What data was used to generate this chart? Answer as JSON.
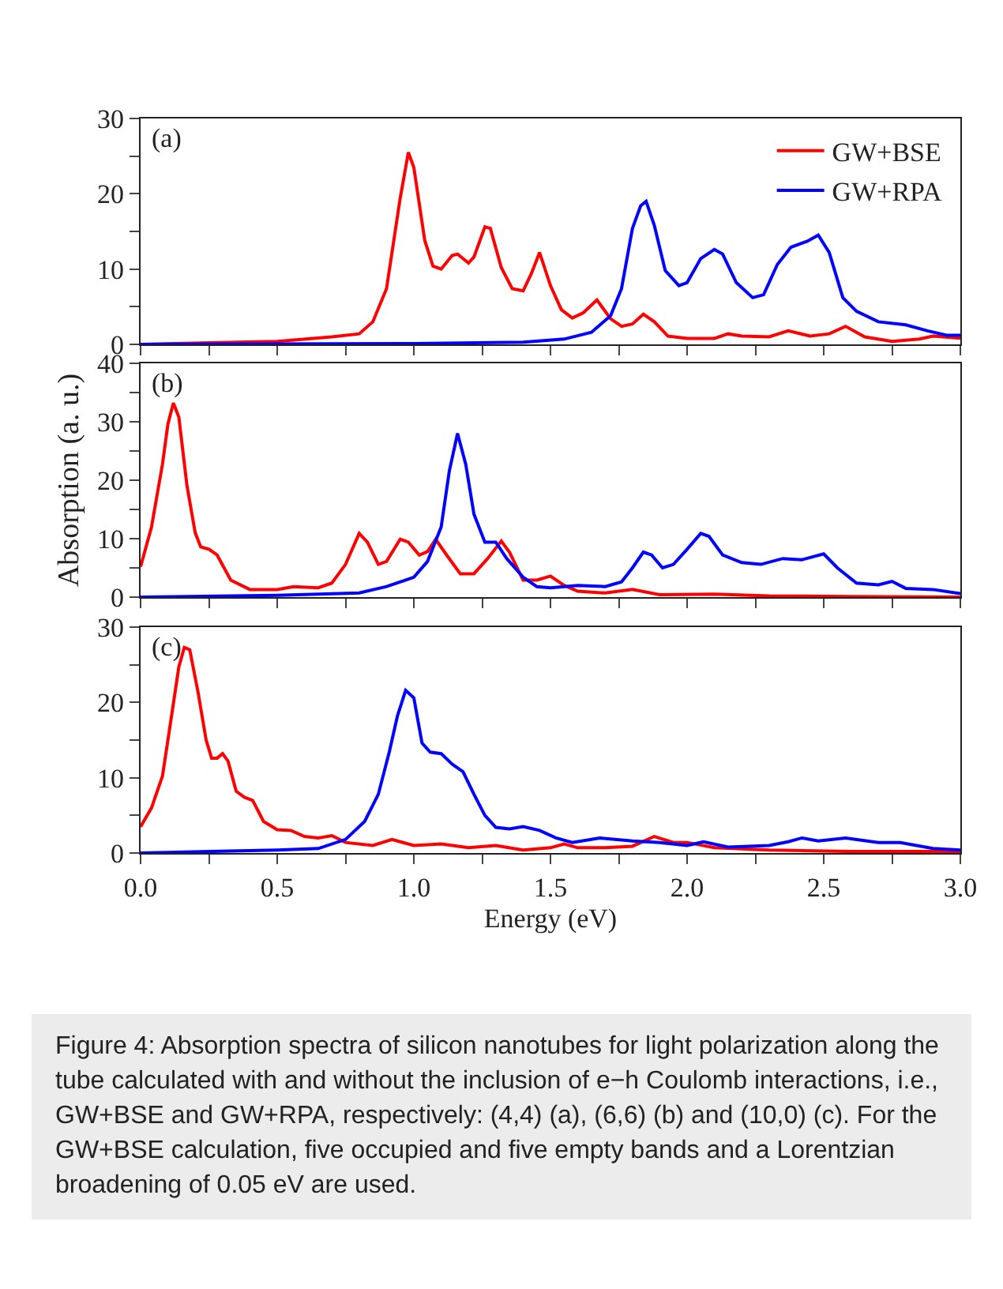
{
  "chart_data": [
    {
      "type": "line",
      "legend": "top right",
      "tick_labels": "y",
      "grid": false,
      "marker": "none",
      "line_style": "solid",
      "annotations": [
        "(a)"
      ],
      "xlim": [
        0,
        3
      ],
      "xticks": [
        {
          "value": 0,
          "label": null
        },
        {
          "value": 0.25,
          "label": null
        },
        {
          "value": 0.5,
          "label": null
        },
        {
          "value": 0.75,
          "label": null
        },
        {
          "value": 1,
          "label": null
        },
        {
          "value": 1.25,
          "label": null
        },
        {
          "value": 1.5,
          "label": null
        },
        {
          "value": 1.75,
          "label": null
        },
        {
          "value": 2,
          "label": null
        },
        {
          "value": 2.25,
          "label": null
        },
        {
          "value": 2.5,
          "label": null
        },
        {
          "value": 2.75,
          "label": null
        },
        {
          "value": 3,
          "label": null
        }
      ],
      "ylim": [
        0,
        30
      ],
      "yticks": [
        0,
        {
          "value": 5,
          "label": null
        },
        10,
        {
          "value": 15,
          "label": null
        },
        20,
        {
          "value": 25,
          "label": null
        },
        30
      ],
      "series": [
        {
          "name": "GW+BSE",
          "color": "#ff0000",
          "x": [
            0,
            0.5,
            0.7,
            0.8,
            0.85,
            0.9,
            0.95,
            0.98,
            1.0,
            1.04,
            1.07,
            1.1,
            1.14,
            1.16,
            1.2,
            1.22,
            1.26,
            1.28,
            1.32,
            1.36,
            1.4,
            1.43,
            1.46,
            1.5,
            1.54,
            1.58,
            1.62,
            1.67,
            1.72,
            1.76,
            1.8,
            1.84,
            1.88,
            1.93,
            2.0,
            2.1,
            2.15,
            2.2,
            2.3,
            2.37,
            2.45,
            2.52,
            2.58,
            2.65,
            2.75,
            2.85,
            2.9,
            3.0
          ],
          "values": [
            0,
            0.4,
            1.0,
            1.4,
            3,
            7.4,
            19.4,
            25.5,
            23.5,
            13.8,
            10.4,
            10,
            11.8,
            12,
            10.8,
            11.6,
            15.6,
            15.4,
            10.2,
            7.4,
            7.1,
            9.4,
            12.2,
            7.8,
            4.6,
            3.5,
            4.2,
            5.9,
            3.4,
            2.4,
            2.7,
            4,
            3,
            1.1,
            0.8,
            0.8,
            1.4,
            1.1,
            1,
            1.8,
            1.1,
            1.4,
            2.4,
            1,
            0.4,
            0.7,
            1.1,
            0.8
          ]
        },
        {
          "name": "GW+RPA",
          "color": "#0000ff",
          "x": [
            0,
            1.0,
            1.4,
            1.55,
            1.65,
            1.72,
            1.76,
            1.8,
            1.83,
            1.85,
            1.88,
            1.92,
            1.97,
            2.0,
            2.05,
            2.1,
            2.13,
            2.18,
            2.24,
            2.28,
            2.33,
            2.38,
            2.44,
            2.48,
            2.52,
            2.57,
            2.62,
            2.7,
            2.8,
            2.88,
            2.95,
            3.0
          ],
          "values": [
            0,
            0.1,
            0.3,
            0.7,
            1.6,
            3.8,
            7.4,
            15.4,
            18.4,
            19,
            15.8,
            9.8,
            7.8,
            8.2,
            11.4,
            12.6,
            12,
            8.2,
            6.2,
            6.6,
            10.6,
            12.9,
            13.7,
            14.5,
            12.2,
            6.2,
            4.4,
            3,
            2.6,
            1.8,
            1.2,
            1.2
          ]
        }
      ]
    },
    {
      "type": "line",
      "legend": false,
      "tick_labels": "y",
      "grid": false,
      "marker": "none",
      "line_style": "solid",
      "ylabel": "Absorption (a. u.)",
      "annotations": [
        "(b)"
      ],
      "xlim": [
        0,
        3
      ],
      "xticks": [
        {
          "value": 0,
          "label": null
        },
        {
          "value": 0.25,
          "label": null
        },
        {
          "value": 0.5,
          "label": null
        },
        {
          "value": 0.75,
          "label": null
        },
        {
          "value": 1,
          "label": null
        },
        {
          "value": 1.25,
          "label": null
        },
        {
          "value": 1.5,
          "label": null
        },
        {
          "value": 1.75,
          "label": null
        },
        {
          "value": 2,
          "label": null
        },
        {
          "value": 2.25,
          "label": null
        },
        {
          "value": 2.5,
          "label": null
        },
        {
          "value": 2.75,
          "label": null
        },
        {
          "value": 3,
          "label": null
        }
      ],
      "ylim": [
        0,
        40
      ],
      "yticks": [
        0,
        {
          "value": 5,
          "label": null
        },
        10,
        {
          "value": 15,
          "label": null
        },
        20,
        {
          "value": 25,
          "label": null
        },
        30,
        {
          "value": 35,
          "label": null
        },
        40
      ],
      "series": [
        {
          "color": "#ff0000",
          "x": [
            0,
            0.04,
            0.08,
            0.1,
            0.12,
            0.14,
            0.17,
            0.2,
            0.22,
            0.25,
            0.28,
            0.33,
            0.4,
            0.5,
            0.56,
            0.65,
            0.7,
            0.75,
            0.8,
            0.83,
            0.87,
            0.9,
            0.95,
            0.98,
            1.02,
            1.05,
            1.08,
            1.12,
            1.17,
            1.22,
            1.27,
            1.32,
            1.35,
            1.4,
            1.45,
            1.5,
            1.55,
            1.6,
            1.7,
            1.8,
            1.9,
            2.1,
            2.3,
            2.6,
            3.0
          ],
          "values": [
            5.2,
            12,
            22.7,
            29.6,
            33.2,
            30.8,
            19,
            11,
            8.6,
            8.2,
            7.2,
            2.9,
            1.3,
            1.3,
            1.8,
            1.6,
            2.4,
            5.6,
            10.9,
            9.4,
            5.6,
            6.1,
            9.9,
            9.4,
            7.2,
            7.8,
            9.9,
            7.2,
            4,
            4,
            6.6,
            9.6,
            7.7,
            2.9,
            2.9,
            3.6,
            2,
            1,
            0.7,
            1.3,
            0.4,
            0.5,
            0.2,
            0.1,
            0
          ]
        },
        {
          "color": "#0000ff",
          "x": [
            0,
            0.5,
            0.8,
            0.9,
            1.0,
            1.05,
            1.1,
            1.13,
            1.16,
            1.19,
            1.22,
            1.26,
            1.3,
            1.34,
            1.4,
            1.45,
            1.5,
            1.6,
            1.7,
            1.76,
            1.8,
            1.84,
            1.87,
            1.91,
            1.95,
            2.0,
            2.05,
            2.08,
            2.13,
            2.2,
            2.27,
            2.35,
            2.42,
            2.5,
            2.55,
            2.62,
            2.7,
            2.75,
            2.8,
            2.9,
            3.0
          ],
          "values": [
            0,
            0.3,
            0.7,
            1.8,
            3.4,
            6.1,
            12,
            21.6,
            28,
            22.7,
            14.2,
            9.4,
            9.4,
            6.6,
            3.4,
            1.8,
            1.6,
            2,
            1.8,
            2.6,
            5,
            7.7,
            7.2,
            5,
            5.6,
            8.2,
            10.9,
            10.4,
            7.2,
            5.9,
            5.6,
            6.6,
            6.4,
            7.4,
            5,
            2.4,
            2.1,
            2.7,
            1.5,
            1.3,
            0.6
          ]
        }
      ]
    },
    {
      "type": "line",
      "legend": false,
      "grid": false,
      "marker": "none",
      "line_style": "solid",
      "xlabel": "Energy (eV)",
      "annotations": [
        "(c)",
        "Figure 4: Absorption spectra of silicon nanotubes for light polarization along the tube calculated with and without the inclusion of e−h Coulomb interactions, i.e., GW+BSE and GW+RPA, respectively: (4,4) (a), (6,6) (b) and (10,0) (c). For the GW+BSE calculation, five occupied and five empty bands and a Lorentzian broadening of 0.05 eV are used."
      ],
      "xlim": [
        0,
        3
      ],
      "xticks": [
        {
          "value": 0,
          "label": "0.0"
        },
        {
          "value": 0.25,
          "label": null
        },
        {
          "value": 0.5,
          "label": "0.5"
        },
        {
          "value": 0.75,
          "label": null
        },
        {
          "value": 1,
          "label": "1.0"
        },
        {
          "value": 1.25,
          "label": null
        },
        {
          "value": 1.5,
          "label": "1.5"
        },
        {
          "value": 1.75,
          "label": null
        },
        {
          "value": 2,
          "label": "2.0"
        },
        {
          "value": 2.25,
          "label": null
        },
        {
          "value": 2.5,
          "label": "2.5"
        },
        {
          "value": 2.75,
          "label": null
        },
        {
          "value": 3,
          "label": "3.0"
        }
      ],
      "ylim": [
        0,
        30
      ],
      "yticks": [
        0,
        {
          "value": 5,
          "label": null
        },
        10,
        {
          "value": 15,
          "label": null
        },
        20,
        {
          "value": 25,
          "label": null
        },
        30
      ],
      "series": [
        {
          "color": "#ff0000",
          "x": [
            0,
            0.04,
            0.08,
            0.11,
            0.14,
            0.16,
            0.18,
            0.21,
            0.24,
            0.26,
            0.28,
            0.3,
            0.32,
            0.35,
            0.38,
            0.41,
            0.45,
            0.5,
            0.55,
            0.6,
            0.65,
            0.7,
            0.75,
            0.85,
            0.92,
            1.0,
            1.1,
            1.2,
            1.3,
            1.4,
            1.5,
            1.55,
            1.6,
            1.7,
            1.8,
            1.88,
            1.95,
            2.0,
            2.1,
            2.3,
            2.6,
            3.0
          ],
          "values": [
            3.5,
            6,
            10.2,
            17.4,
            24.7,
            27.3,
            27,
            21.4,
            15,
            12.6,
            12.6,
            13.2,
            12.2,
            8.2,
            7.4,
            7,
            4.2,
            3.1,
            3,
            2.2,
            2,
            2.3,
            1.4,
            1,
            1.8,
            1,
            1.2,
            0.7,
            1,
            0.4,
            0.7,
            1.2,
            0.7,
            0.7,
            0.9,
            2.2,
            1.4,
            1.4,
            0.7,
            0.4,
            0.2,
            0.2
          ]
        },
        {
          "color": "#0000ff",
          "x": [
            0,
            0.5,
            0.65,
            0.75,
            0.82,
            0.87,
            0.91,
            0.94,
            0.97,
            1.0,
            1.03,
            1.06,
            1.1,
            1.14,
            1.18,
            1.22,
            1.26,
            1.3,
            1.35,
            1.4,
            1.46,
            1.52,
            1.58,
            1.68,
            1.8,
            1.9,
            2.0,
            2.06,
            2.15,
            2.3,
            2.37,
            2.42,
            2.48,
            2.58,
            2.7,
            2.78,
            2.9,
            3.0
          ],
          "values": [
            0,
            0.4,
            0.6,
            1.8,
            4.2,
            7.8,
            13.4,
            18.2,
            21.6,
            20.6,
            14.6,
            13.4,
            13.2,
            11.8,
            10.8,
            7.8,
            5,
            3.4,
            3.2,
            3.5,
            3,
            2,
            1.4,
            2,
            1.6,
            1.4,
            1,
            1.5,
            0.8,
            1,
            1.5,
            2,
            1.6,
            2,
            1.4,
            1.4,
            0.6,
            0.4
          ]
        }
      ]
    }
  ]
}
